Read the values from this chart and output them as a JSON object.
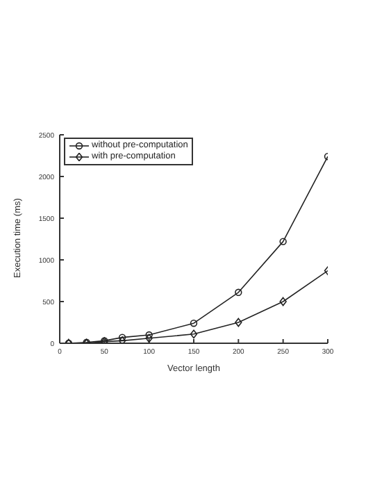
{
  "chart_data": {
    "type": "line",
    "xlabel": "Vector length",
    "ylabel": "Execution time (ms)",
    "x": [
      10,
      30,
      50,
      70,
      100,
      150,
      200,
      250,
      300
    ],
    "series": [
      {
        "name": "without pre-computation",
        "color": "#222222",
        "marker": "circle",
        "values": [
          0,
          10,
          30,
          70,
          100,
          240,
          610,
          1220,
          2240
        ]
      },
      {
        "name": "with pre-computation",
        "color": "#222222",
        "marker": "diamond",
        "values": [
          0,
          0,
          20,
          30,
          60,
          110,
          250,
          500,
          870
        ]
      }
    ],
    "xlim": [
      0,
      300
    ],
    "xticks": [
      0,
      50,
      100,
      150,
      200,
      250,
      300
    ],
    "ylim": [
      0,
      2500
    ],
    "yticks": [
      0,
      500,
      1000,
      1500,
      2000,
      2500
    ],
    "grid": false,
    "legend": "top left",
    "line_style": "solid"
  }
}
